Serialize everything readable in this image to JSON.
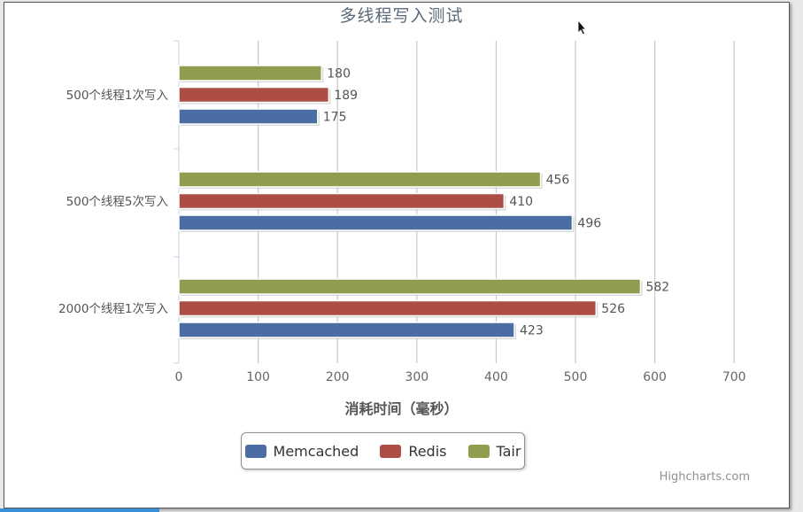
{
  "chart_data": {
    "type": "bar",
    "orientation": "horizontal",
    "title": "多线程写入测试",
    "xlabel": "消耗时间（毫秒）",
    "ylabel": "",
    "categories": [
      "500个线程1次写入",
      "500个线程5次写入",
      "2000个线程1次写入"
    ],
    "series": [
      {
        "name": "Tair",
        "color": "#8e9e4e",
        "values": [
          180,
          456,
          582
        ]
      },
      {
        "name": "Redis",
        "color": "#ad4e45",
        "values": [
          189,
          410,
          526
        ]
      },
      {
        "name": "Memcached",
        "color": "#4a6ea4",
        "values": [
          175,
          496,
          423
        ]
      }
    ],
    "xlim": [
      0,
      700
    ],
    "ticks": [
      "0",
      "100",
      "200",
      "300",
      "400",
      "500",
      "600",
      "700"
    ],
    "grid": true,
    "data_labels": true,
    "legend_position": "bottom",
    "legend": [
      {
        "label": "Memcached",
        "color": "#4a6ea4"
      },
      {
        "label": "Redis",
        "color": "#ad4e45"
      },
      {
        "label": "Tair",
        "color": "#8e9e4e"
      }
    ]
  },
  "credit": "Highcharts.com"
}
